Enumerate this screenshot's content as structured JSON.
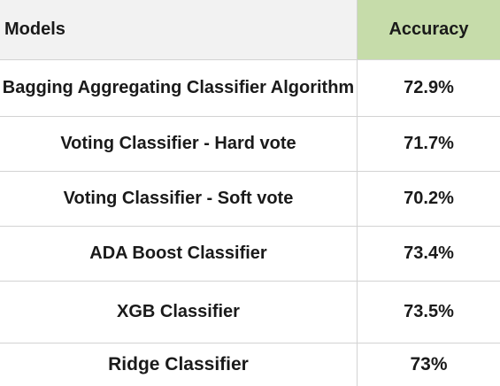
{
  "chart_data": {
    "type": "table",
    "columns": [
      "Models",
      "Accuracy"
    ],
    "rows": [
      {
        "model": "Bagging Aggregating Classifier Algorithm",
        "accuracy": "72.9%"
      },
      {
        "model": "Voting Classifier - Hard vote",
        "accuracy": "71.7%"
      },
      {
        "model": "Voting Classifier - Soft vote",
        "accuracy": "70.2%"
      },
      {
        "model": "ADA Boost Classifier",
        "accuracy": "73.4%"
      },
      {
        "model": "XGB Classifier",
        "accuracy": "73.5%"
      },
      {
        "model": "Ridge Classifier",
        "accuracy": "73%"
      }
    ]
  },
  "colors": {
    "header_models_bg": "#f2f2f2",
    "header_accuracy_bg": "#c6dcaa",
    "grid_line": "#d3d3d3"
  }
}
